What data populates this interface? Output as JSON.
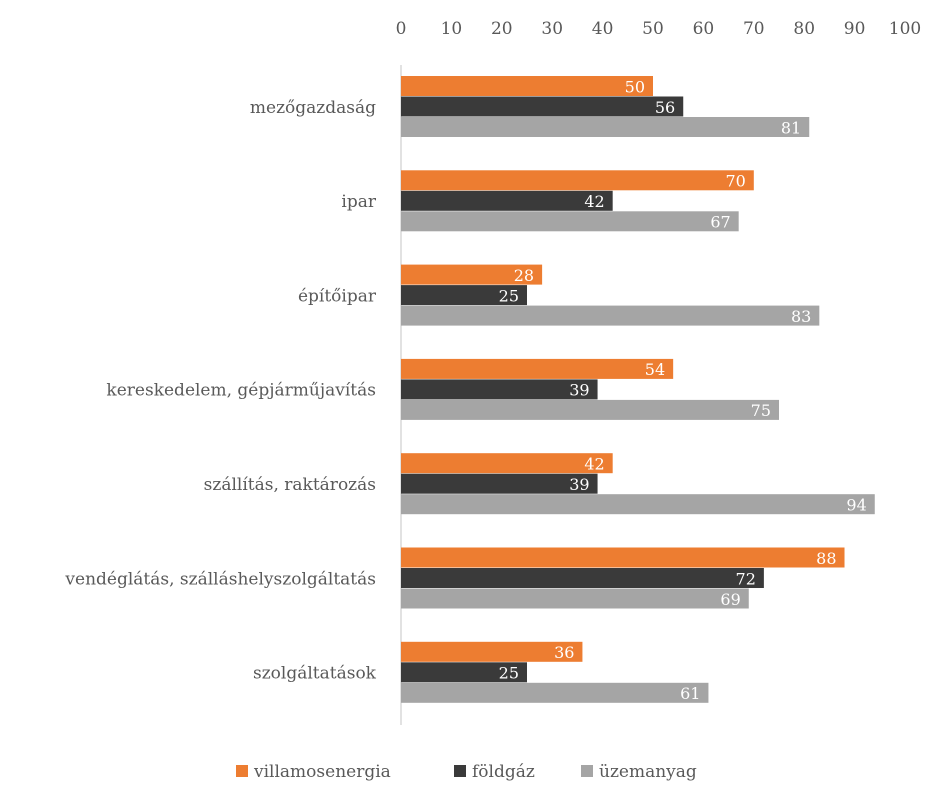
{
  "chart_data": {
    "type": "bar",
    "orientation": "horizontal",
    "categories": [
      "mezőgazdaság",
      "ipar",
      "építőipar",
      "kereskedelem, gépjárműjavítás",
      "szállítás, raktározás",
      "vendéglátás, szálláshelyszolgáltatás",
      "szolgáltatások"
    ],
    "series": [
      {
        "name": "villamosenergia",
        "color": "#ED7D31",
        "values": [
          50,
          70,
          28,
          54,
          42,
          88,
          36
        ]
      },
      {
        "name": "földgáz",
        "color": "#3A3A3A",
        "values": [
          56,
          42,
          25,
          39,
          39,
          72,
          25
        ]
      },
      {
        "name": "üzemanyag",
        "color": "#A5A5A5",
        "values": [
          81,
          67,
          83,
          75,
          94,
          69,
          61
        ]
      }
    ],
    "xlim": [
      0,
      100
    ],
    "ticks": [
      "0",
      "10",
      "20",
      "30",
      "40",
      "50",
      "60",
      "70",
      "80",
      "90",
      "100"
    ],
    "axis_position": "top",
    "grid": false,
    "legend_position": "bottom",
    "data_labels": true
  }
}
